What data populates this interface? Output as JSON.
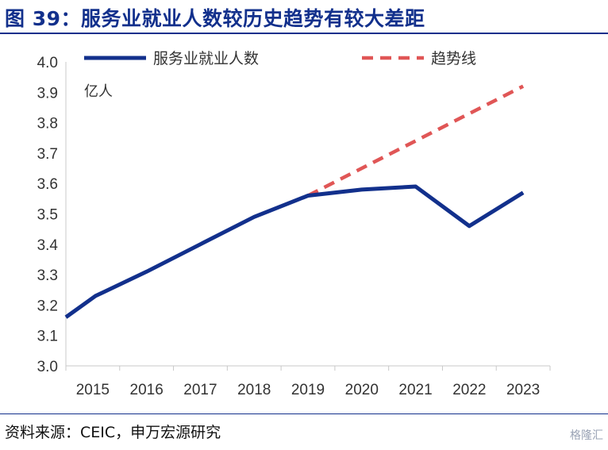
{
  "figure_title": "图 39：服务业就业人数较历史趋势有较大差距",
  "source": "资料来源：CEIC，申万宏源研究",
  "watermark": "格隆汇",
  "colors": {
    "title": "#12308c",
    "actual": "#12308c",
    "trend": "#e05656",
    "axis": "#c8c8c8"
  },
  "chart_data": {
    "type": "line",
    "title": "",
    "xlabel": "",
    "ylabel": "亿人",
    "categories": [
      "2015",
      "2016",
      "2017",
      "2018",
      "2019",
      "2020",
      "2021",
      "2022",
      "2023"
    ],
    "ylim": [
      3.0,
      4.0
    ],
    "yticks": [
      "3.0",
      "3.1",
      "3.2",
      "3.3",
      "3.4",
      "3.5",
      "3.6",
      "3.7",
      "3.8",
      "3.9",
      "4.0"
    ],
    "grid": false,
    "legend_position": "top",
    "series": [
      {
        "name": "服务业就业人数",
        "style": "solid",
        "color": "#12308c",
        "points": [
          [
            "2015",
            3.16
          ],
          [
            "2015",
            3.23
          ],
          [
            "2016",
            3.31
          ],
          [
            "2017",
            3.4
          ],
          [
            "2018",
            3.49
          ],
          [
            "2019",
            3.56
          ],
          [
            "2020",
            3.58
          ],
          [
            "2021",
            3.59
          ],
          [
            "2022",
            3.46
          ],
          [
            "2023",
            3.57
          ]
        ],
        "point_offsets": [
          0,
          0.55,
          0.5,
          0.5,
          0.5,
          0.5,
          0.5,
          0.5,
          0.5,
          0.5
        ]
      },
      {
        "name": "趋势线",
        "style": "dashed",
        "color": "#e05656",
        "points": [
          [
            "2019",
            3.56
          ],
          [
            "2023",
            3.92
          ]
        ],
        "point_offsets": [
          0.5,
          0.5
        ]
      }
    ]
  }
}
